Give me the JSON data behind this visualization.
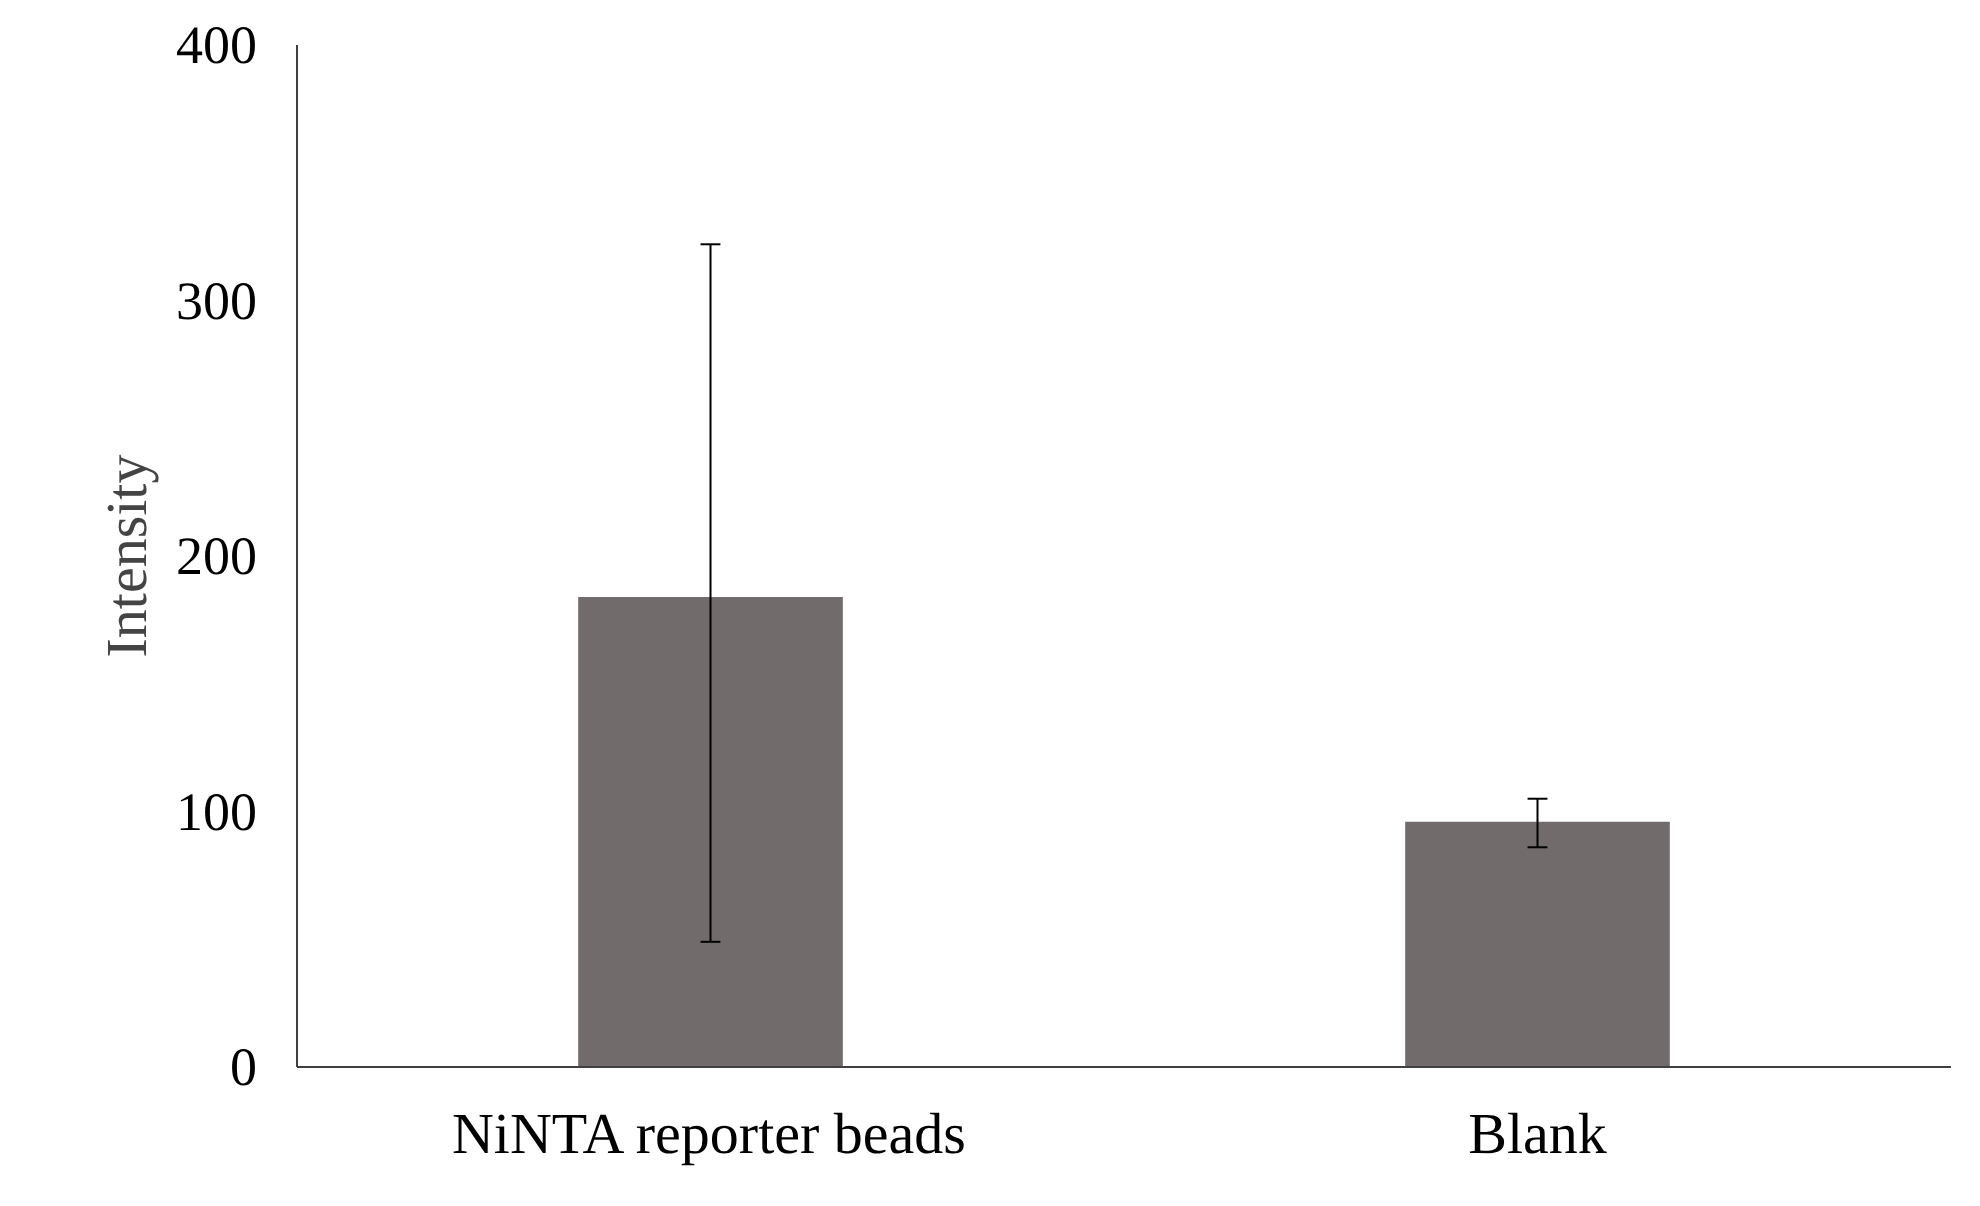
{
  "chart_data": {
    "type": "bar",
    "ylabel": "Intensity",
    "categories": [
      "NiNTA reporter beads",
      "Blank"
    ],
    "values": [
      184,
      96
    ],
    "color": "#716c6b",
    "errors": [
      [
        49,
        322
      ],
      [
        86,
        105
      ]
    ],
    "ylim": [
      0,
      400
    ],
    "yticks": [
      0,
      100,
      200,
      300,
      400
    ],
    "grid": false
  }
}
